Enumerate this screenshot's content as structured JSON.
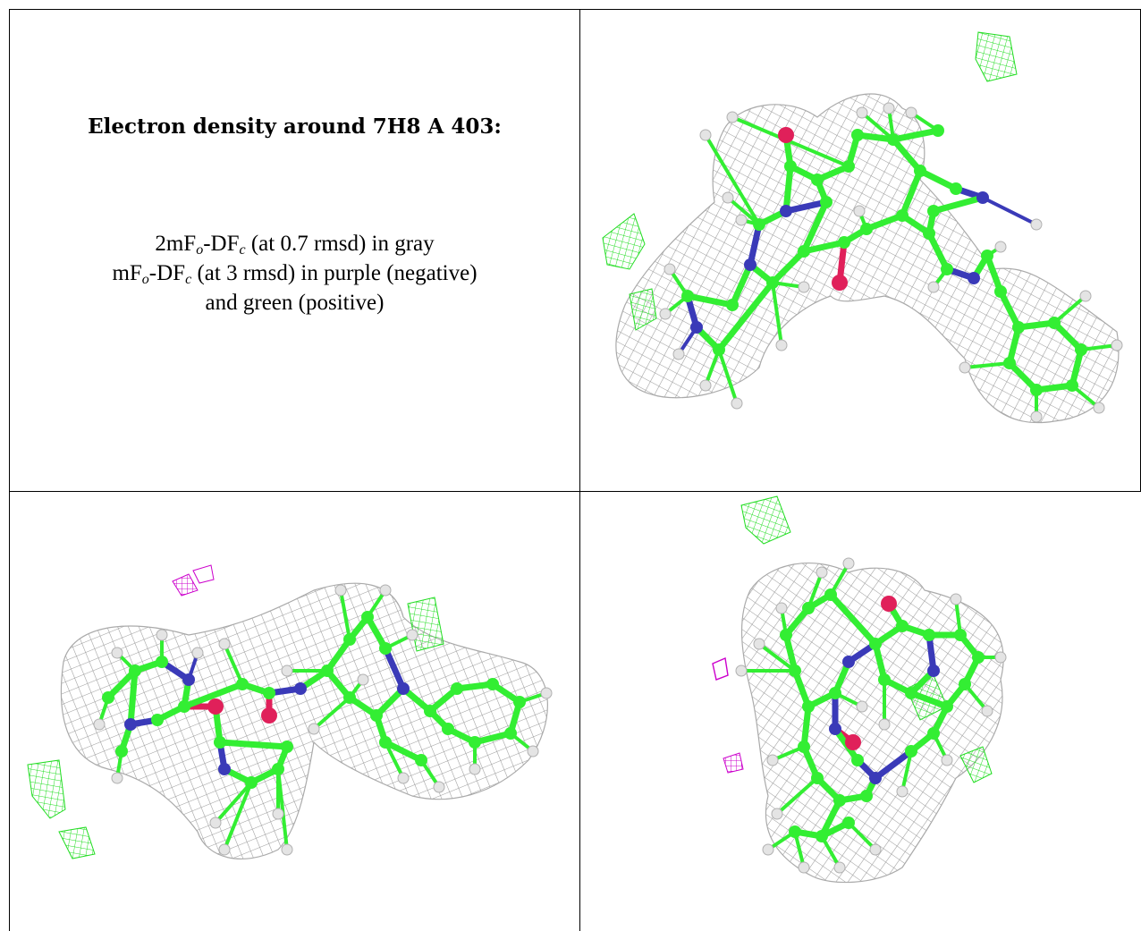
{
  "title": "Electron density around 7H8 A 403:",
  "legend": {
    "line1": {
      "prefix": "2mF",
      "sub1": "o",
      "mid": "-DF",
      "sub2": "c",
      "suffix": " (at 0.7 rmsd) in gray"
    },
    "line2": {
      "prefix": "mF",
      "sub1": "o",
      "mid": "-DF",
      "sub2": "c",
      "suffix": " (at 3 rmsd) in purple (negative)"
    },
    "line3": "and green (positive)"
  },
  "colors": {
    "mesh_2fofc": "#9a9a9a",
    "carbon": "#33ee33",
    "nitrogen": "#3a3ab8",
    "oxygen": "#e0205a",
    "hydrogen": "#e4e4e4",
    "diff_positive": "#22dd22",
    "diff_negative": "#cc00cc"
  },
  "views": [
    {
      "name": "view-top-right"
    },
    {
      "name": "view-bottom-left"
    },
    {
      "name": "view-bottom-right"
    }
  ]
}
